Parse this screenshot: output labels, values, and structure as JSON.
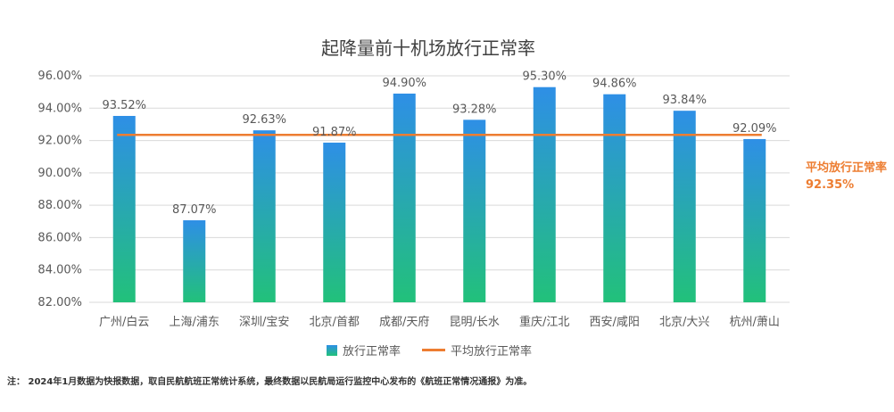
{
  "chart_data": {
    "type": "bar",
    "title": "起降量前十机场放行正常率",
    "categories": [
      "广州/白云",
      "上海/浦东",
      "深圳/宝安",
      "北京/首都",
      "成都/天府",
      "昆明/长水",
      "重庆/江北",
      "西安/咸阳",
      "北京/大兴",
      "杭州/萧山"
    ],
    "series": [
      {
        "name": "放行正常率",
        "values": [
          93.52,
          87.07,
          92.63,
          91.87,
          94.9,
          93.28,
          95.3,
          94.86,
          93.84,
          92.09
        ]
      }
    ],
    "value_labels": [
      "93.52%",
      "87.07%",
      "92.63%",
      "91.87%",
      "94.90%",
      "93.28%",
      "95.30%",
      "94.86%",
      "93.84%",
      "92.09%"
    ],
    "average_line": {
      "name": "平均放行正常率",
      "value": 92.35,
      "label_title": "平均放行正常率",
      "label_value": "92.35%"
    },
    "ylim": [
      82,
      96
    ],
    "yticks": [
      "82.00%",
      "84.00%",
      "86.00%",
      "88.00%",
      "90.00%",
      "92.00%",
      "94.00%",
      "96.00%"
    ],
    "grid": true,
    "legend_position": "bottom",
    "colors": {
      "bar_top": "#2e8fe6",
      "bar_bottom": "#22c17a",
      "average": "#ed7d31",
      "grid": "#d9d9d9"
    }
  },
  "legend": {
    "bar_label": "放行正常率",
    "line_label": "平均放行正常率"
  },
  "footnote": "注： 2024年1月数据为快报数据，取自民航航班正常统计系统，最终数据以民航局运行监控中心发布的《航班正常情况通报》为准。"
}
